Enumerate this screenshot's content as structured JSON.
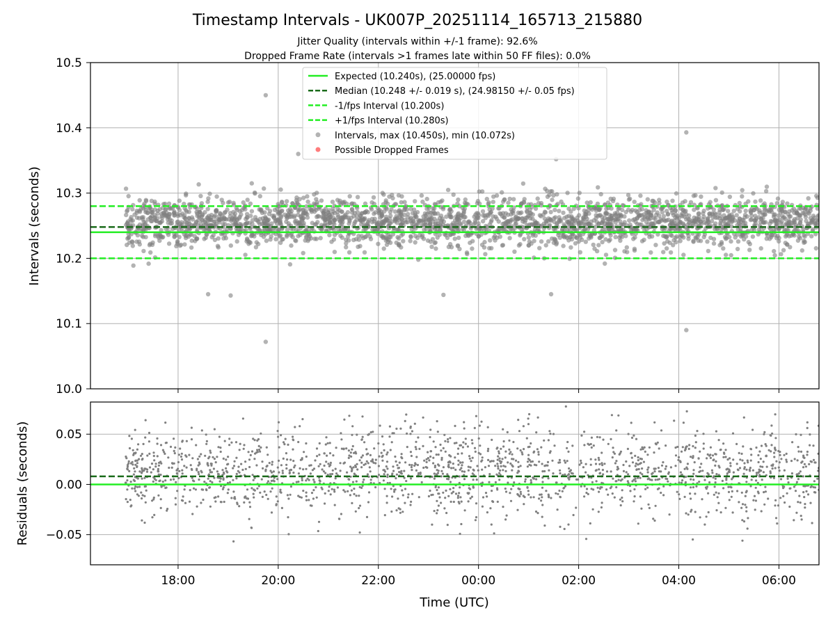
{
  "chart_data": {
    "type": "scatter",
    "title": "Timestamp Intervals - UK007P_20251114_165713_215880",
    "subtitle_lines": [
      "Jitter Quality (intervals within +/-1 frame): 92.6%",
      "Dropped Frame Rate (intervals >1 frames late within 50 FF files): 0.0%"
    ],
    "xlabel": "Time (UTC)",
    "x_tick_labels": [
      "18:00",
      "20:00",
      "22:00",
      "00:00",
      "02:00",
      "04:00",
      "06:00"
    ],
    "x_range_hours": [
      16.25,
      30.8
    ],
    "x_tick_hours": [
      18,
      20,
      22,
      24,
      26,
      28,
      30
    ],
    "data_x_range_hours": [
      16.95,
      30.8
    ],
    "grid": true,
    "legend_placement": "upper center",
    "panels": [
      {
        "name": "intervals",
        "ylabel": "Intervals (seconds)",
        "ylim": [
          10.0,
          10.5
        ],
        "y_ticks": [
          10.0,
          10.1,
          10.2,
          10.3,
          10.4,
          10.5
        ],
        "y_tick_labels": [
          "10.0",
          "10.1",
          "10.2",
          "10.3",
          "10.4",
          "10.5"
        ],
        "lines": [
          {
            "label": "Expected (10.240s), (25.00000 fps)",
            "y": 10.24,
            "style": "solid",
            "color": "#22ee22"
          },
          {
            "label": "Median (10.248 +/- 0.019 s), (24.98150 +/- 0.05 fps)",
            "y": 10.248,
            "style": "dashed",
            "color": "#1a6b1a"
          },
          {
            "label": "-1/fps Interval (10.200s)",
            "y": 10.2,
            "style": "dashed",
            "color": "#22ee22"
          },
          {
            "label": "+1/fps Interval (10.280s)",
            "y": 10.28,
            "style": "dashed",
            "color": "#22ee22"
          }
        ],
        "scatter": [
          {
            "label": "Intervals, max (10.450s), min (10.072s)",
            "color": "#808080",
            "alpha": 0.6,
            "max": 10.45,
            "min": 10.072,
            "center": 10.255,
            "spread": 0.019
          },
          {
            "label": "Possible Dropped Frames",
            "color": "#ff4444",
            "alpha": 0.7,
            "count": 0
          }
        ],
        "notable_points": [
          {
            "x": 19.75,
            "y": 10.45
          },
          {
            "x": 19.75,
            "y": 10.072
          },
          {
            "x": 28.15,
            "y": 10.393
          },
          {
            "x": 28.15,
            "y": 10.09
          },
          {
            "x": 20.4,
            "y": 10.36
          },
          {
            "x": 25.55,
            "y": 10.352
          },
          {
            "x": 18.6,
            "y": 10.145
          },
          {
            "x": 19.05,
            "y": 10.143
          },
          {
            "x": 23.3,
            "y": 10.144
          },
          {
            "x": 25.45,
            "y": 10.145
          }
        ]
      },
      {
        "name": "residuals",
        "ylabel": "Residuals (seconds)",
        "ylim": [
          -0.08,
          0.082
        ],
        "y_ticks": [
          -0.05,
          0.0,
          0.05
        ],
        "y_tick_labels": [
          "−0.05",
          "0.00",
          "0.05"
        ],
        "lines": [
          {
            "y": 0.0,
            "style": "solid",
            "color": "#22ee22"
          },
          {
            "y": 0.008,
            "style": "dashed",
            "color": "#1a6b1a"
          }
        ],
        "scatter": [
          {
            "color": "#808080",
            "center": 0.012,
            "spread": 0.022
          }
        ]
      }
    ]
  }
}
